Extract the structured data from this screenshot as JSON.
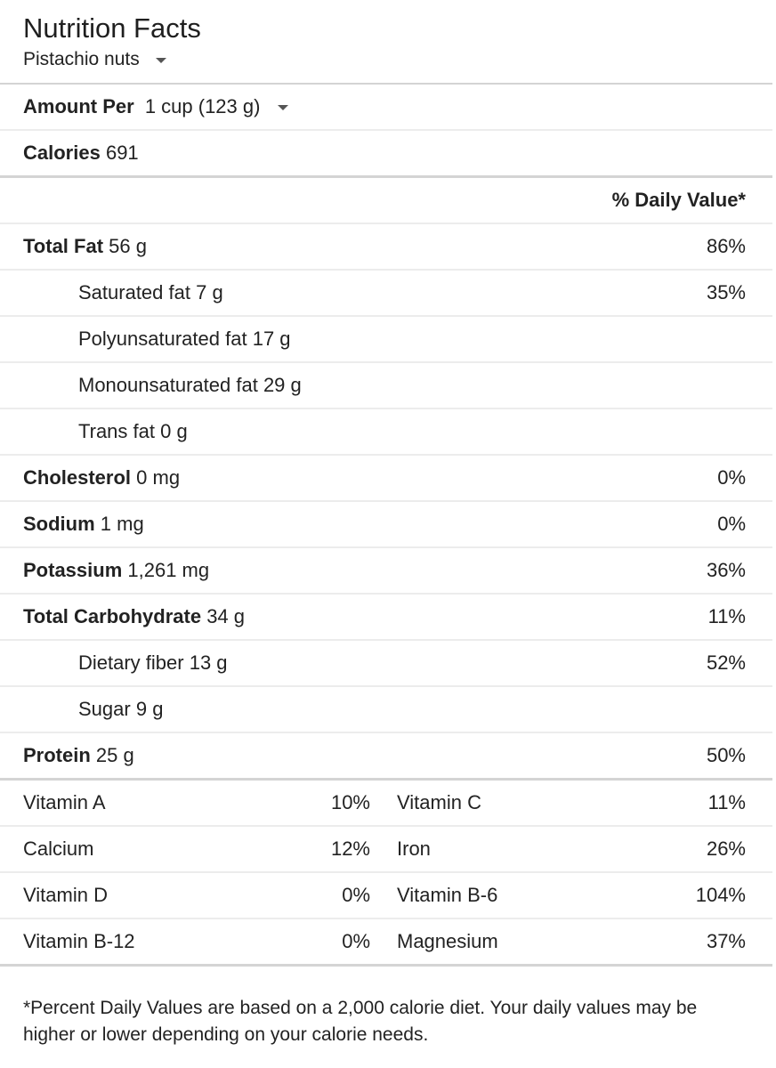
{
  "header": {
    "title": "Nutrition Facts",
    "food": "Pistachio nuts"
  },
  "serving": {
    "label": "Amount Per",
    "value": "1 cup (123 g)"
  },
  "calories": {
    "label": "Calories",
    "value": "691"
  },
  "daily_value_header": "% Daily Value*",
  "nutrients": [
    {
      "label": "Total Fat",
      "amount": "56 g",
      "pct": "86%"
    },
    {
      "label": "Saturated fat",
      "amount": "7 g",
      "pct": "35%"
    },
    {
      "label": "Polyunsaturated fat",
      "amount": "17 g",
      "pct": ""
    },
    {
      "label": "Monounsaturated fat",
      "amount": "29 g",
      "pct": ""
    },
    {
      "label": "Trans fat",
      "amount": "0 g",
      "pct": ""
    },
    {
      "label": "Cholesterol",
      "amount": "0 mg",
      "pct": "0%"
    },
    {
      "label": "Sodium",
      "amount": "1 mg",
      "pct": "0%"
    },
    {
      "label": "Potassium",
      "amount": "1,261 mg",
      "pct": "36%"
    },
    {
      "label": "Total Carbohydrate",
      "amount": "34 g",
      "pct": "11%"
    },
    {
      "label": "Dietary fiber",
      "amount": "13 g",
      "pct": "52%"
    },
    {
      "label": "Sugar",
      "amount": "9 g",
      "pct": ""
    },
    {
      "label": "Protein",
      "amount": "25 g",
      "pct": "50%"
    }
  ],
  "vitamins": [
    {
      "left_label": "Vitamin A",
      "left_pct": "10%",
      "right_label": "Vitamin C",
      "right_pct": "11%"
    },
    {
      "left_label": "Calcium",
      "left_pct": "12%",
      "right_label": "Iron",
      "right_pct": "26%"
    },
    {
      "left_label": "Vitamin D",
      "left_pct": "0%",
      "right_label": "Vitamin B-6",
      "right_pct": "104%"
    },
    {
      "left_label": "Vitamin B-12",
      "left_pct": "0%",
      "right_label": "Magnesium",
      "right_pct": "37%"
    }
  ],
  "footnote": "*Percent Daily Values are based on a 2,000 calorie diet. Your daily values may be higher or lower depending on your calorie needs.",
  "icons": {
    "food_dropdown": "chevron-down-icon",
    "serving_dropdown": "chevron-down-icon"
  }
}
